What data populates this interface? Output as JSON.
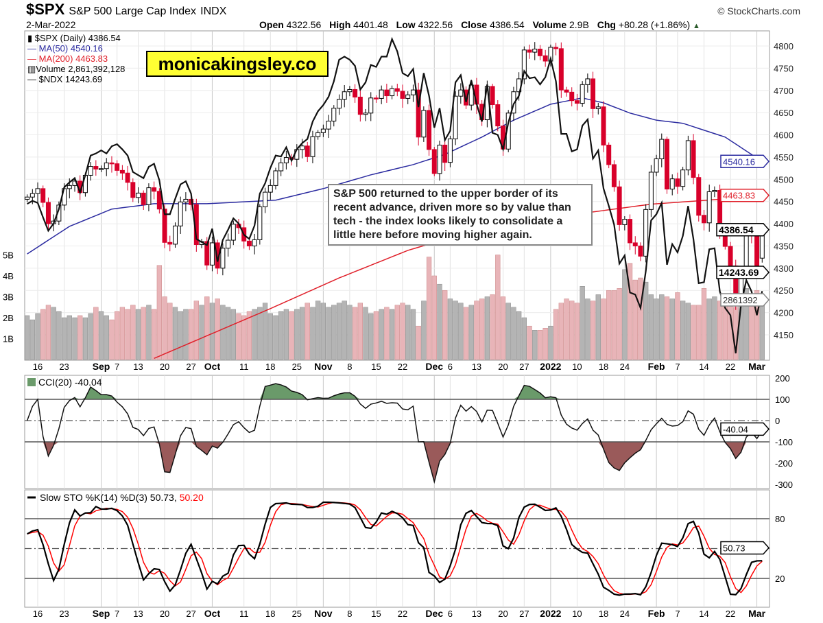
{
  "header": {
    "symbol": "$SPX",
    "name": "S&P 500 Large Cap Index",
    "exchange": "INDX",
    "date": "2-Mar-2022",
    "open_label": "Open",
    "open": "4322.56",
    "high_label": "High",
    "high": "4401.48",
    "low_label": "Low",
    "low": "4322.56",
    "close_label": "Close",
    "close": "4386.54",
    "volume_label": "Volume",
    "volume": "2.9B",
    "chg_label": "Chg",
    "chg": "+80.28 (+1.86%)",
    "up_arrow": "▲",
    "copyright": "© StockCharts.com"
  },
  "legend": {
    "spx": "$SPX (Daily) 4386.54",
    "ma50": "MA(50) 4540.16",
    "ma200": "MA(200) 4463.83",
    "volume": "Volume 2,861,392,128",
    "ndx": "$NDX 14243.69"
  },
  "watermark": "monicakingsley.co",
  "annotation": "S&P 500 returned to the upper border of its recent advance, driven more so by value than tech - the index looks likely to consolidate a little here before moving higher again.",
  "colors": {
    "up": "#000000",
    "down": "#d8002a",
    "ma50": "#2b2ba0",
    "ma200": "#e0202a",
    "vol_up": "#b4b4b4",
    "vol_down": "#e8b4b8",
    "cci_pos": "#6a9a6a",
    "cci_neg": "#9a5a5a",
    "stoK": "#000000",
    "stoD": "#ff0000"
  },
  "chart_data": [
    {
      "type": "candlestick",
      "title": "$SPX (Daily)",
      "ylim": [
        4100,
        4830
      ],
      "y_ticks": [
        4150,
        4200,
        4250,
        4300,
        4350,
        4400,
        4450,
        4500,
        4550,
        4600,
        4650,
        4700,
        4750,
        4800
      ],
      "x_ticks": [
        {
          "label": "16",
          "i": 2
        },
        {
          "label": "23",
          "i": 7
        },
        {
          "label": "Sep",
          "i": 14,
          "bold": true
        },
        {
          "label": "7",
          "i": 17
        },
        {
          "label": "13",
          "i": 21
        },
        {
          "label": "20",
          "i": 26
        },
        {
          "label": "27",
          "i": 31
        },
        {
          "label": "Oct",
          "i": 35,
          "bold": true
        },
        {
          "label": "11",
          "i": 41
        },
        {
          "label": "18",
          "i": 46
        },
        {
          "label": "25",
          "i": 51
        },
        {
          "label": "Nov",
          "i": 56,
          "bold": true
        },
        {
          "label": "8",
          "i": 61
        },
        {
          "label": "15",
          "i": 66
        },
        {
          "label": "22",
          "i": 71
        },
        {
          "label": "Dec",
          "i": 77,
          "bold": true
        },
        {
          "label": "6",
          "i": 80
        },
        {
          "label": "13",
          "i": 85
        },
        {
          "label": "20",
          "i": 90
        },
        {
          "label": "27",
          "i": 94
        },
        {
          "label": "2022",
          "i": 99,
          "bold": true
        },
        {
          "label": "10",
          "i": 104
        },
        {
          "label": "18",
          "i": 109
        },
        {
          "label": "24",
          "i": 113
        },
        {
          "label": "Feb",
          "i": 119,
          "bold": true
        },
        {
          "label": "7",
          "i": 123
        },
        {
          "label": "14",
          "i": 128
        },
        {
          "label": "22",
          "i": 133
        },
        {
          "label": "Mar",
          "i": 138,
          "bold": true
        }
      ],
      "close": [
        4460,
        4468,
        4479,
        4448,
        4400,
        4406,
        4442,
        4479,
        4486,
        4496,
        4470,
        4509,
        4529,
        4523,
        4524,
        4537,
        4535,
        4520,
        4514,
        4493,
        4459,
        4469,
        4443,
        4481,
        4473,
        4433,
        4358,
        4354,
        4395,
        4449,
        4455,
        4443,
        4353,
        4360,
        4307,
        4357,
        4300,
        4345,
        4363,
        4399,
        4391,
        4361,
        4350,
        4364,
        4438,
        4471,
        4486,
        4519,
        4537,
        4549,
        4545,
        4567,
        4575,
        4551,
        4596,
        4605,
        4613,
        4631,
        4660,
        4680,
        4697,
        4702,
        4685,
        4646,
        4649,
        4683,
        4682,
        4701,
        4688,
        4704,
        4698,
        4682,
        4690,
        4701,
        4595,
        4655,
        4567,
        4513,
        4577,
        4538,
        4591,
        4687,
        4701,
        4667,
        4712,
        4669,
        4634,
        4709,
        4668,
        4620,
        4568,
        4649,
        4697,
        4726,
        4791,
        4786,
        4793,
        4778,
        4766,
        4797,
        4794,
        4701,
        4696,
        4677,
        4671,
        4713,
        4726,
        4659,
        4663,
        4577,
        4533,
        4483,
        4398,
        4410,
        4357,
        4350,
        4327,
        4432,
        4516,
        4546,
        4590,
        4478,
        4501,
        4484,
        4521,
        4587,
        4504,
        4419,
        4402,
        4472,
        4475,
        4381,
        4349,
        4305,
        4226,
        4289,
        4385,
        4374,
        4306,
        4386.54
      ],
      "last_open": 4322.56,
      "last_high": 4401.48,
      "last_low": 4322.56,
      "ma50": [
        [
          0,
          4332
        ],
        [
          8,
          4394
        ],
        [
          16,
          4433
        ],
        [
          24,
          4445
        ],
        [
          34,
          4445
        ],
        [
          47,
          4453
        ],
        [
          56,
          4479
        ],
        [
          65,
          4510
        ],
        [
          73,
          4533
        ],
        [
          79,
          4556
        ],
        [
          86,
          4595
        ],
        [
          92,
          4633
        ],
        [
          99,
          4669
        ],
        [
          105,
          4683
        ],
        [
          109,
          4672
        ],
        [
          114,
          4649
        ],
        [
          119,
          4633
        ],
        [
          124,
          4626
        ],
        [
          132,
          4595
        ],
        [
          139,
          4540.16
        ]
      ],
      "ma200": [
        [
          24,
          4097
        ],
        [
          46,
          4209
        ],
        [
          59,
          4278
        ],
        [
          72,
          4340
        ],
        [
          85,
          4386
        ],
        [
          98,
          4413
        ],
        [
          106,
          4425
        ],
        [
          118,
          4444
        ],
        [
          131,
          4455
        ],
        [
          139,
          4463.83
        ]
      ],
      "ndx": {
        "name": "$NDX",
        "ylim": [
          13573,
          16770
        ],
        "values": [
          15090,
          15120,
          15100,
          14960,
          14830,
          14900,
          15040,
          15250,
          15300,
          15340,
          15200,
          15370,
          15560,
          15580,
          15610,
          15580,
          15650,
          15670,
          15620,
          15560,
          15400,
          15370,
          15340,
          15450,
          15480,
          15320,
          14990,
          14990,
          15140,
          15280,
          15310,
          15190,
          14750,
          14720,
          14690,
          14850,
          14530,
          14740,
          14840,
          14950,
          14900,
          14790,
          14750,
          14880,
          15190,
          15290,
          15440,
          15560,
          15550,
          15640,
          15510,
          15620,
          15680,
          15720,
          15890,
          15990,
          16050,
          16130,
          16280,
          16490,
          16520,
          16490,
          16430,
          16200,
          16270,
          16440,
          16420,
          16520,
          16520,
          16690,
          16570,
          16360,
          16330,
          16400,
          16030,
          16360,
          16140,
          15830,
          16020,
          15710,
          15800,
          16270,
          16340,
          16080,
          16290,
          16060,
          15890,
          16250,
          15780,
          15760,
          15620,
          15880,
          16060,
          16140,
          16380,
          16310,
          16320,
          16250,
          16320,
          16500,
          16280,
          15770,
          15770,
          15600,
          15620,
          15850,
          15910,
          15530,
          15610,
          15240,
          15070,
          14890,
          14510,
          14590,
          14230,
          14210,
          14080,
          14440,
          14930,
          14990,
          15100,
          14500,
          14700,
          14620,
          14780,
          15070,
          14750,
          14320,
          14330,
          14650,
          14660,
          14240,
          14080,
          14010,
          13640,
          14110,
          14350,
          14240,
          14010,
          14243.69
        ]
      },
      "volume": {
        "unit": "B",
        "ticks": [
          "1B",
          "2B",
          "3B",
          "4B",
          "5B"
        ],
        "values": [
          2.1,
          1.9,
          2.2,
          2.4,
          2.6,
          2.5,
          2.3,
          2.0,
          2.1,
          2.0,
          2.1,
          2.0,
          2.2,
          2.5,
          2.3,
          2.1,
          1.9,
          2.3,
          2.5,
          2.4,
          2.6,
          2.4,
          2.5,
          2.6,
          2.4,
          4.5,
          3.0,
          2.7,
          2.5,
          2.3,
          2.4,
          2.4,
          2.8,
          2.6,
          3.0,
          2.7,
          2.9,
          2.6,
          2.5,
          2.4,
          2.2,
          2.1,
          2.3,
          2.4,
          2.5,
          2.7,
          2.2,
          2.1,
          2.3,
          2.4,
          2.3,
          2.4,
          2.5,
          2.7,
          2.5,
          2.8,
          2.7,
          2.5,
          2.6,
          2.7,
          2.8,
          2.6,
          2.5,
          2.7,
          2.5,
          2.2,
          2.3,
          2.4,
          2.5,
          2.4,
          2.6,
          2.7,
          2.6,
          2.4,
          1.6,
          2.8,
          4.9,
          4.0,
          3.6,
          3.3,
          2.9,
          2.8,
          2.7,
          2.5,
          2.6,
          2.8,
          2.9,
          3.0,
          3.1,
          5.0,
          3.0,
          2.7,
          2.5,
          2.3,
          2.0,
          1.6,
          1.4,
          1.4,
          1.5,
          1.6,
          2.4,
          2.7,
          2.9,
          2.8,
          2.7,
          3.5,
          2.9,
          2.8,
          3.1,
          2.9,
          3.3,
          3.3,
          3.4,
          4.3,
          4.6,
          3.8,
          3.9,
          3.7,
          3.1,
          2.9,
          3.1,
          3.0,
          2.9,
          3.2,
          2.8,
          2.7,
          2.6,
          2.6,
          3.4,
          2.9,
          3.0,
          2.8,
          2.7,
          2.6,
          2.5,
          3.0,
          3.4,
          3.0,
          3.3,
          2.86
        ]
      },
      "tags": {
        "ma50": "4540.16",
        "ma200": "4463.83",
        "close": "4386.54",
        "ndx": "14243.69",
        "volume": "2861392"
      }
    },
    {
      "type": "line",
      "title": "CCI(20) -40.04",
      "period": 20,
      "ylim": [
        -310,
        215
      ],
      "y_ticks": [
        "200",
        "100",
        "0",
        "-100",
        "-200",
        "-300"
      ],
      "levels": [
        100,
        -100
      ],
      "last_tag": "-40.04"
    },
    {
      "type": "line",
      "title_k": "Slow STO %K(14) %D(3) 50.73,",
      "title_d": "50.20",
      "k": 14,
      "d": 3,
      "y_ticks": [
        "80",
        "20"
      ],
      "levels": [
        80,
        20
      ],
      "mid": 50,
      "last_tag": "50.73"
    }
  ]
}
